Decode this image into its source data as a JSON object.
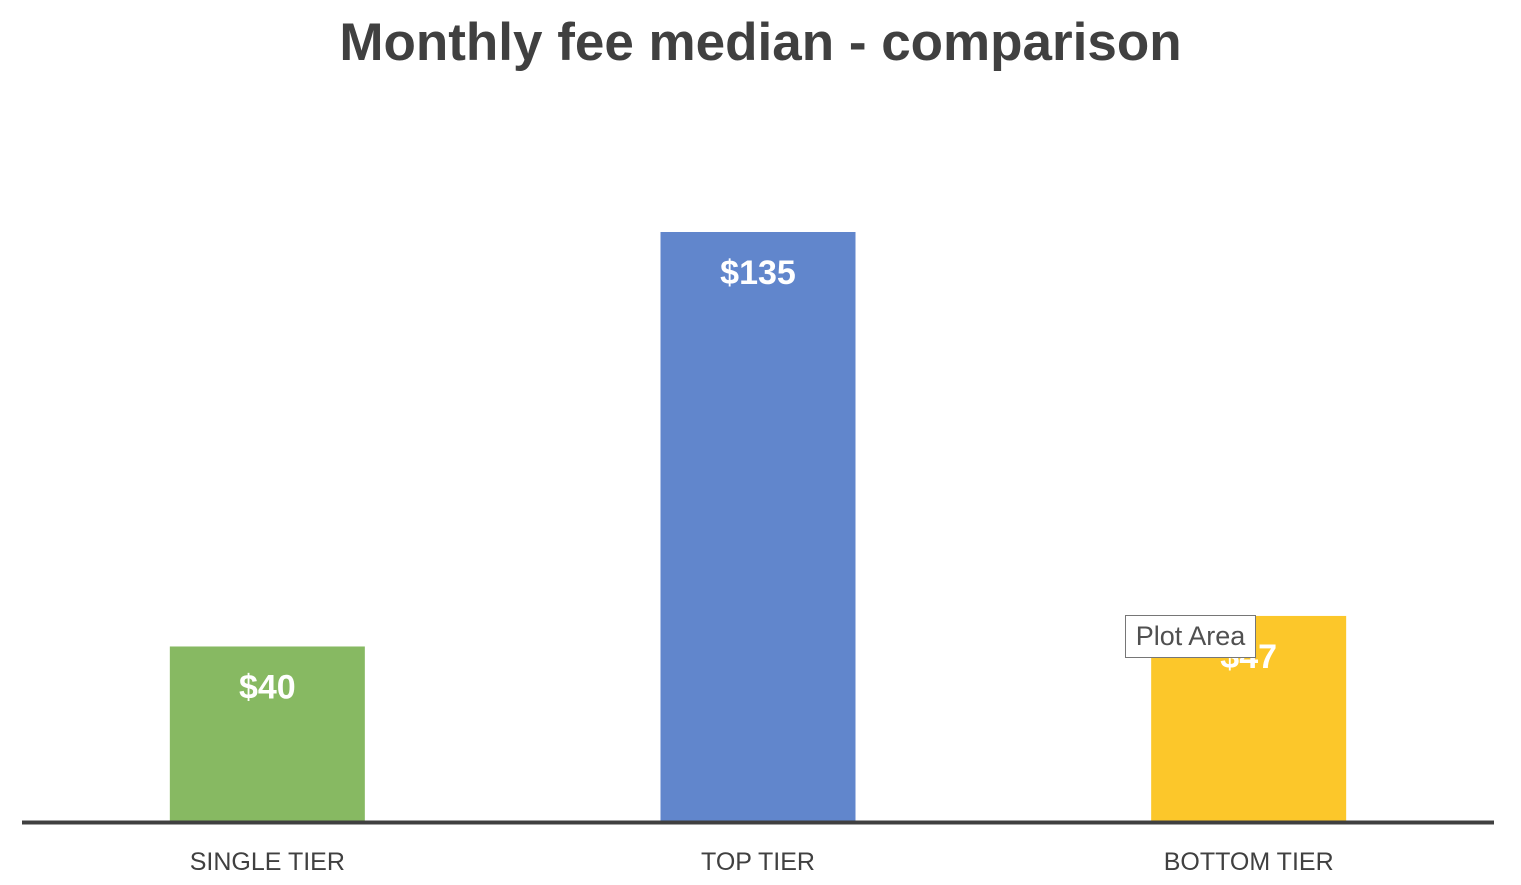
{
  "chart_data": {
    "type": "bar",
    "title": "Monthly fee median - comparison",
    "categories": [
      "SINGLE TIER",
      "TOP TIER",
      "BOTTOM TIER"
    ],
    "values": [
      40,
      135,
      47
    ],
    "data_labels": [
      "$40",
      "$135",
      "$47"
    ],
    "colors": [
      "#87b962",
      "#6186cc",
      "#fcc72a"
    ],
    "xlabel": "",
    "ylabel": "",
    "ylim": [
      0,
      135
    ],
    "grid": false,
    "legend": "none"
  },
  "tooltip": {
    "text": "Plot Area"
  },
  "colors": {
    "title": "#404040",
    "axis": "#404040",
    "label": "#ffffff",
    "tick": "#404040"
  }
}
